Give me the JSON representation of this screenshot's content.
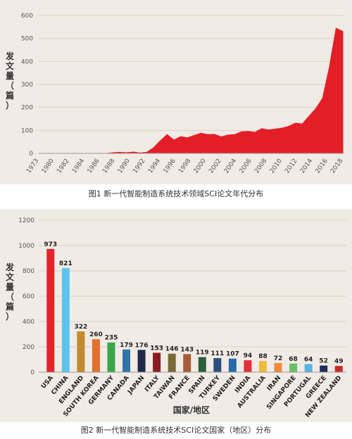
{
  "chart_data": [
    {
      "type": "area",
      "caption": "图1 新一代智能制造系统技术领域SCI论文年代分布",
      "ylabel": "发文量（篇）",
      "xlabel": "",
      "ylim": [
        0,
        600
      ],
      "yticks": [
        0,
        100,
        200,
        300,
        400,
        500,
        600
      ],
      "xticks": [
        "1973",
        "1980",
        "1982",
        "1984",
        "1986",
        "1988",
        "1990",
        "1992",
        "1994",
        "1996",
        "1998",
        "2000",
        "2002",
        "2004",
        "2006",
        "2008",
        "2010",
        "2012",
        "2014",
        "2016",
        "2018"
      ],
      "x": [
        1973,
        1980,
        1981,
        1982,
        1983,
        1984,
        1985,
        1986,
        1987,
        1988,
        1989,
        1990,
        1991,
        1992,
        1993,
        1994,
        1995,
        1996,
        1997,
        1998,
        1999,
        2000,
        2001,
        2002,
        2003,
        2004,
        2005,
        2006,
        2007,
        2008,
        2009,
        2010,
        2011,
        2012,
        2013,
        2014,
        2015,
        2016,
        2017,
        2018
      ],
      "values": [
        0,
        0,
        0,
        0,
        0,
        3,
        5,
        3,
        6,
        2,
        5,
        25,
        55,
        82,
        58,
        73,
        68,
        78,
        88,
        82,
        83,
        72,
        80,
        82,
        94,
        96,
        92,
        108,
        102,
        106,
        110,
        118,
        132,
        128,
        162,
        195,
        240,
        375,
        545,
        530
      ],
      "color": "#e41e26",
      "grid": true
    },
    {
      "type": "bar",
      "caption": "图2 新一代智能制造系统技术SCI论文国家（地区）分布",
      "ylabel": "发文量（篇）",
      "xlabel": "国家/地区",
      "ylim": [
        0,
        1200
      ],
      "yticks": [
        0,
        200,
        400,
        600,
        800,
        1000,
        1200
      ],
      "categories": [
        "USA",
        "CHINA",
        "ENGLAND",
        "SOUTH KOREA",
        "GERMANY",
        "CANADA",
        "JAPAN",
        "ITALY",
        "TAIWAN",
        "FRANCE",
        "SPAIN",
        "TURKEY",
        "SWEDEN",
        "INDIA",
        "AUSTRALIA",
        "IRAN",
        "SINGAPORE",
        "PORTUGAL",
        "GREECE",
        "NEW ZEALAND"
      ],
      "values": [
        973,
        821,
        322,
        260,
        235,
        179,
        176,
        153,
        146,
        143,
        119,
        111,
        107,
        94,
        88,
        72,
        68,
        64,
        52,
        49
      ],
      "colors": [
        "#e2252b",
        "#5bc4ee",
        "#c08a2d",
        "#e2702c",
        "#3aa64a",
        "#2f74a8",
        "#1f2b4d",
        "#8a1c24",
        "#7a6a35",
        "#a65b3a",
        "#2f5e3a",
        "#2a4f7a",
        "#2b6aa8",
        "#e2303a",
        "#f0b93a",
        "#f08a3a",
        "#66c066",
        "#59b2df",
        "#1f2b5c",
        "#c52a2a"
      ],
      "grid": true
    }
  ]
}
